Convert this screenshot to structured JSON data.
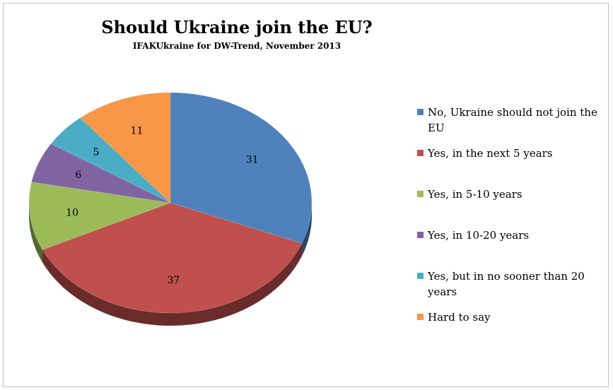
{
  "chart_data": {
    "type": "pie",
    "title": "Should Ukraine join the EU?",
    "subtitle": "IFAKUkraine for DW-Trend, November 2013",
    "legend_position": "right",
    "slices": [
      {
        "label": "No, Ukraine should not join the EU",
        "value": 31,
        "color": "#4f81bd"
      },
      {
        "label": "Yes, in the next 5 years",
        "value": 37,
        "color": "#c0504d"
      },
      {
        "label": "Yes, in 5-10 years",
        "value": 10,
        "color": "#9bbb59"
      },
      {
        "label": "Yes, in 10-20 years",
        "value": 6,
        "color": "#8064a2"
      },
      {
        "label": "Yes, but in no sooner than 20 years",
        "value": 5,
        "color": "#4bacc6"
      },
      {
        "label": "Hard to say",
        "value": 11,
        "color": "#f79646"
      }
    ]
  }
}
